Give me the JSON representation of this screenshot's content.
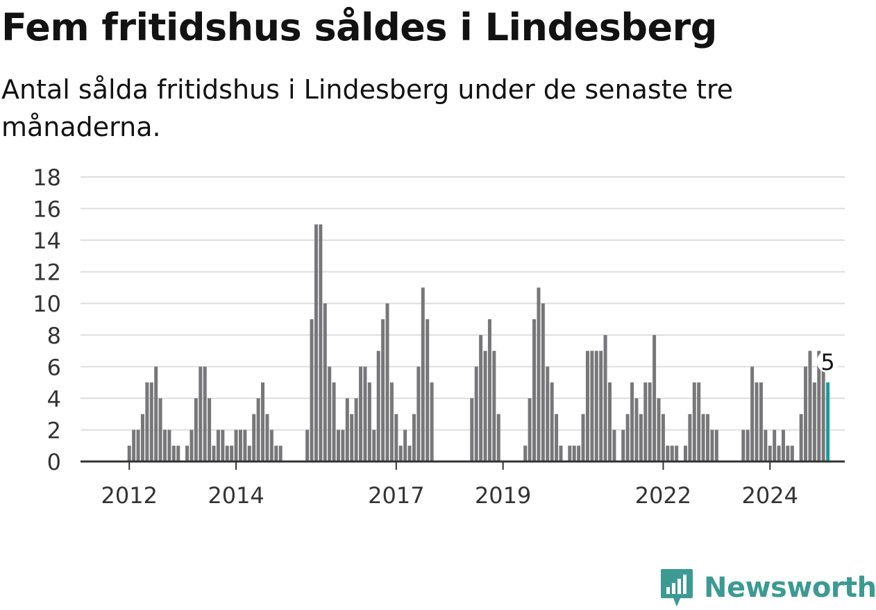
{
  "header": {
    "title": "Fem fritidshus såldes i Lindesberg",
    "subtitle": "Antal sålda fritidshus i Lindesberg under de senaste tre månaderna."
  },
  "branding": {
    "logo_text": "Newsworthy",
    "logo_color": "#3c9a93"
  },
  "colors": {
    "bar": "#77777a",
    "highlight": "#1a9c94",
    "grid": "#dedede",
    "axis": "#333333",
    "text": "#333333"
  },
  "chart_data": {
    "type": "bar",
    "xlabel": "",
    "ylabel": "",
    "ylim": [
      0,
      18
    ],
    "yticks": [
      0,
      2,
      4,
      6,
      8,
      10,
      12,
      14,
      16,
      18
    ],
    "grid": true,
    "x_start": "2011-10",
    "x_tick_labels": [
      {
        "date": "2012-01",
        "label": "2012"
      },
      {
        "date": "2014-01",
        "label": "2014"
      },
      {
        "date": "2017-01",
        "label": "2017"
      },
      {
        "date": "2019-01",
        "label": "2019"
      },
      {
        "date": "2022-01",
        "label": "2022"
      },
      {
        "date": "2024-01",
        "label": "2024"
      }
    ],
    "values": [
      0,
      0,
      0,
      1,
      2,
      2,
      3,
      5,
      5,
      6,
      4,
      2,
      2,
      1,
      1,
      0,
      1,
      2,
      4,
      6,
      6,
      4,
      1,
      2,
      2,
      1,
      1,
      2,
      2,
      2,
      1,
      3,
      4,
      5,
      3,
      2,
      1,
      1,
      0,
      0,
      0,
      0,
      0,
      2,
      9,
      15,
      15,
      10,
      6,
      5,
      2,
      2,
      4,
      3,
      4,
      6,
      6,
      5,
      2,
      7,
      9,
      10,
      5,
      3,
      1,
      2,
      1,
      3,
      6,
      11,
      9,
      5,
      0,
      0,
      0,
      0,
      0,
      0,
      0,
      0,
      4,
      6,
      8,
      7,
      9,
      7,
      3,
      0,
      0,
      0,
      0,
      0,
      1,
      4,
      9,
      11,
      10,
      6,
      5,
      3,
      1,
      0,
      1,
      1,
      1,
      3,
      7,
      7,
      7,
      7,
      8,
      5,
      2,
      0,
      2,
      3,
      5,
      4,
      3,
      5,
      5,
      8,
      4,
      3,
      1,
      1,
      1,
      0,
      1,
      3,
      5,
      5,
      3,
      3,
      2,
      2,
      0,
      0,
      0,
      0,
      0,
      2,
      2,
      6,
      5,
      5,
      2,
      1,
      2,
      1,
      2,
      1,
      1,
      0,
      3,
      6,
      7,
      5,
      7,
      6,
      5
    ],
    "highlight_last": true,
    "last_value_label": "5"
  }
}
